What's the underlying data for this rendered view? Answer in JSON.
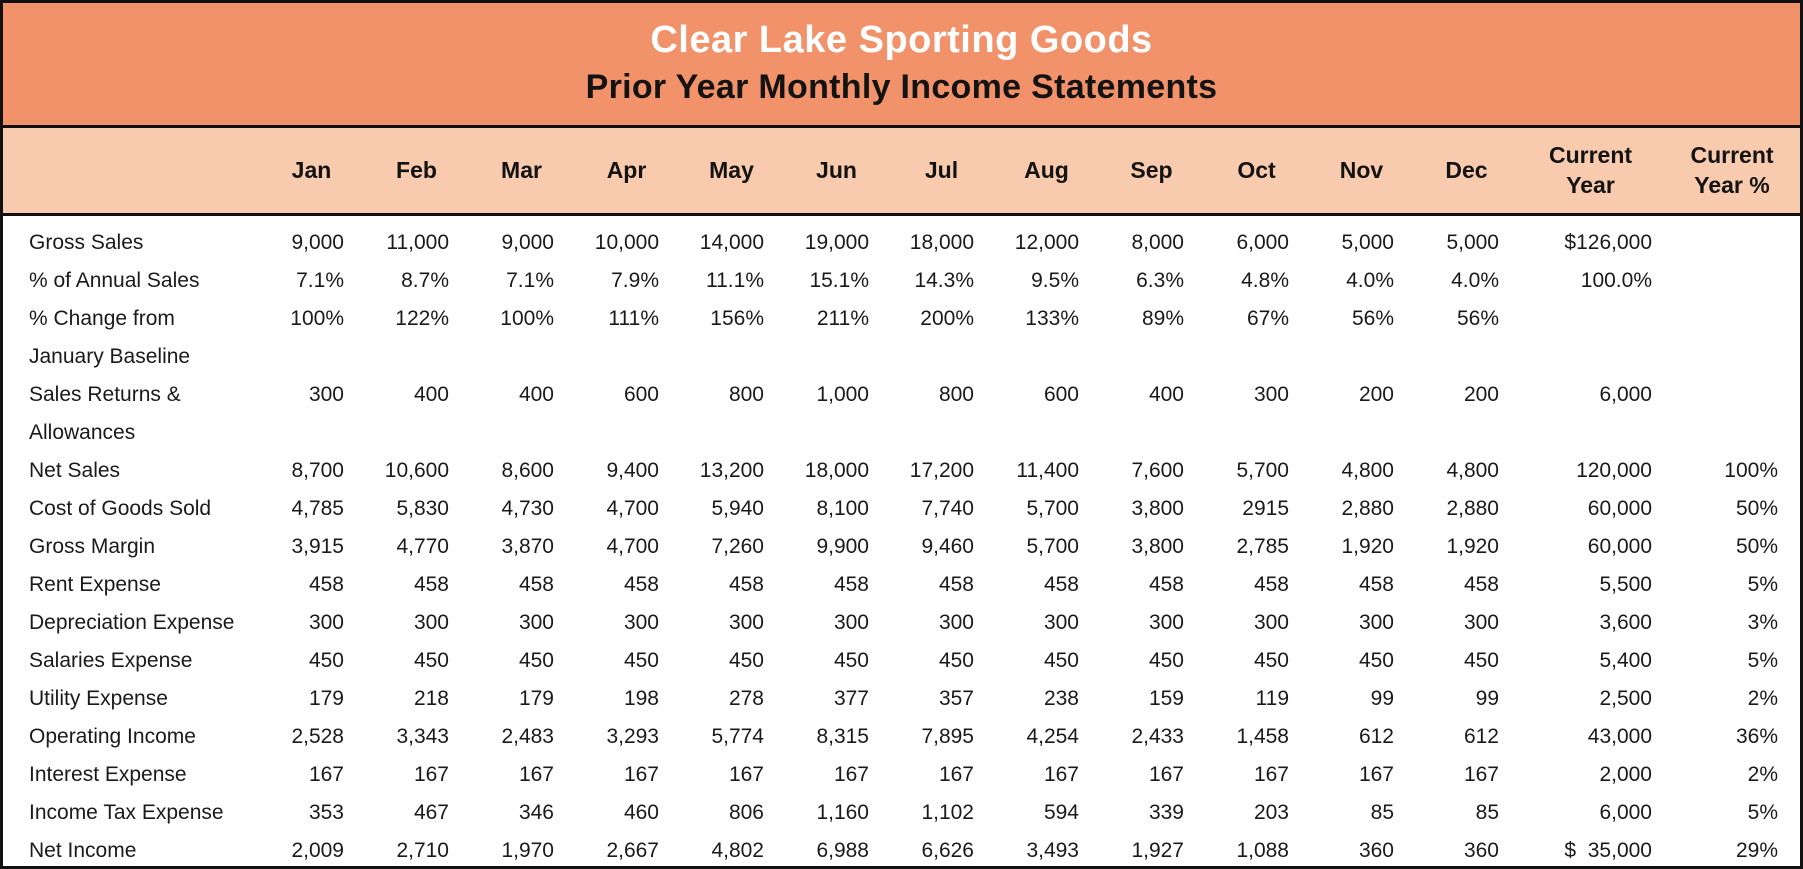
{
  "colors": {
    "title_bg": "#F2926A",
    "header_bg": "#F8CAAE",
    "border": "#111111",
    "body_bg": "#FFFFFF",
    "title_line1_color": "#FFFFFF",
    "title_line2_color": "#131313"
  },
  "chart_data": {
    "type": "table",
    "title": "Clear Lake Sporting Goods",
    "subtitle": "Prior Year Monthly Income Statements",
    "columns": [
      "Jan",
      "Feb",
      "Mar",
      "Apr",
      "May",
      "Jun",
      "Jul",
      "Aug",
      "Sep",
      "Oct",
      "Nov",
      "Dec",
      "Current Year",
      "Current Year %"
    ],
    "rows": [
      {
        "label": "Gross Sales",
        "values": [
          "9,000",
          "11,000",
          "9,000",
          "10,000",
          "14,000",
          "19,000",
          "18,000",
          "12,000",
          "8,000",
          "6,000",
          "5,000",
          "5,000",
          "$126,000",
          ""
        ]
      },
      {
        "label": "% of Annual Sales",
        "values": [
          "7.1%",
          "8.7%",
          "7.1%",
          "7.9%",
          "11.1%",
          "15.1%",
          "14.3%",
          "9.5%",
          "6.3%",
          "4.8%",
          "4.0%",
          "4.0%",
          "100.0%",
          ""
        ]
      },
      {
        "label": "% Change from January Baseline",
        "values": [
          "100%",
          "122%",
          "100%",
          "111%",
          "156%",
          "211%",
          "200%",
          "133%",
          "89%",
          "67%",
          "56%",
          "56%",
          "",
          ""
        ]
      },
      {
        "label": "Sales Returns & Allowances",
        "values": [
          "300",
          "400",
          "400",
          "600",
          "800",
          "1,000",
          "800",
          "600",
          "400",
          "300",
          "200",
          "200",
          "6,000",
          ""
        ]
      },
      {
        "label": "Net Sales",
        "values": [
          "8,700",
          "10,600",
          "8,600",
          "9,400",
          "13,200",
          "18,000",
          "17,200",
          "11,400",
          "7,600",
          "5,700",
          "4,800",
          "4,800",
          "120,000",
          "100%"
        ]
      },
      {
        "label": "Cost of Goods Sold",
        "values": [
          "4,785",
          "5,830",
          "4,730",
          "4,700",
          "5,940",
          "8,100",
          "7,740",
          "5,700",
          "3,800",
          "2915",
          "2,880",
          "2,880",
          "60,000",
          "50%"
        ]
      },
      {
        "label": "Gross Margin",
        "values": [
          "3,915",
          "4,770",
          "3,870",
          "4,700",
          "7,260",
          "9,900",
          "9,460",
          "5,700",
          "3,800",
          "2,785",
          "1,920",
          "1,920",
          "60,000",
          "50%"
        ]
      },
      {
        "label": "Rent Expense",
        "values": [
          "458",
          "458",
          "458",
          "458",
          "458",
          "458",
          "458",
          "458",
          "458",
          "458",
          "458",
          "458",
          "5,500",
          "5%"
        ]
      },
      {
        "label": "Depreciation Expense",
        "values": [
          "300",
          "300",
          "300",
          "300",
          "300",
          "300",
          "300",
          "300",
          "300",
          "300",
          "300",
          "300",
          "3,600",
          "3%"
        ]
      },
      {
        "label": "Salaries Expense",
        "values": [
          "450",
          "450",
          "450",
          "450",
          "450",
          "450",
          "450",
          "450",
          "450",
          "450",
          "450",
          "450",
          "5,400",
          "5%"
        ]
      },
      {
        "label": "Utility Expense",
        "values": [
          "179",
          "218",
          "179",
          "198",
          "278",
          "377",
          "357",
          "238",
          "159",
          "119",
          "99",
          "99",
          "2,500",
          "2%"
        ]
      },
      {
        "label": "Operating Income",
        "values": [
          "2,528",
          "3,343",
          "2,483",
          "3,293",
          "5,774",
          "8,315",
          "7,895",
          "4,254",
          "2,433",
          "1,458",
          "612",
          "612",
          "43,000",
          "36%"
        ]
      },
      {
        "label": "Interest Expense",
        "values": [
          "167",
          "167",
          "167",
          "167",
          "167",
          "167",
          "167",
          "167",
          "167",
          "167",
          "167",
          "167",
          "2,000",
          "2%"
        ]
      },
      {
        "label": "Income Tax Expense",
        "values": [
          "353",
          "467",
          "346",
          "460",
          "806",
          "1,160",
          "1,102",
          "594",
          "339",
          "203",
          "85",
          "85",
          "6,000",
          "5%"
        ]
      },
      {
        "label": "Net Income",
        "values": [
          "2,009",
          "2,710",
          "1,970",
          "2,667",
          "4,802",
          "6,988",
          "6,626",
          "3,493",
          "1,927",
          "1,088",
          "360",
          "360",
          "$  35,000",
          "29%"
        ]
      }
    ]
  }
}
